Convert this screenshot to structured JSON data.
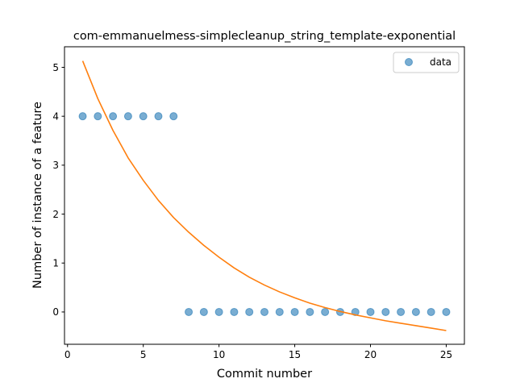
{
  "chart_data": {
    "type": "scatter",
    "title": "com-emmanuelmess-simplecleanup_string_template-exponential",
    "xlabel": "Commit number",
    "ylabel": "Number of instance of a feature",
    "xlim": [
      -0.2,
      26.2
    ],
    "ylim": [
      -0.66,
      5.42
    ],
    "xticks": [
      0,
      5,
      10,
      15,
      20,
      25
    ],
    "yticks": [
      0,
      1,
      2,
      3,
      4,
      5
    ],
    "grid": false,
    "legend_position": "top-right",
    "series": [
      {
        "name": "data",
        "kind": "scatter",
        "color": "#1f77b4",
        "x": [
          1,
          2,
          3,
          4,
          5,
          6,
          7,
          8,
          9,
          10,
          11,
          12,
          13,
          14,
          15,
          16,
          17,
          18,
          19,
          20,
          21,
          22,
          23,
          24,
          25
        ],
        "y": [
          4,
          4,
          4,
          4,
          4,
          4,
          4,
          0,
          0,
          0,
          0,
          0,
          0,
          0,
          0,
          0,
          0,
          0,
          0,
          0,
          0,
          0,
          0,
          0,
          0
        ]
      },
      {
        "kind": "line",
        "color": "#ff7f0e",
        "x": [
          1,
          2,
          3,
          4,
          5,
          6,
          7,
          8,
          9,
          10,
          11,
          12,
          13,
          14,
          15,
          16,
          17,
          18,
          19,
          20,
          21,
          22,
          23,
          24,
          25
        ],
        "y": [
          5.13,
          4.36,
          3.71,
          3.15,
          2.69,
          2.28,
          1.93,
          1.63,
          1.36,
          1.12,
          0.9,
          0.71,
          0.55,
          0.41,
          0.29,
          0.18,
          0.09,
          0.01,
          -0.06,
          -0.12,
          -0.18,
          -0.23,
          -0.28,
          -0.33,
          -0.38
        ]
      }
    ]
  }
}
